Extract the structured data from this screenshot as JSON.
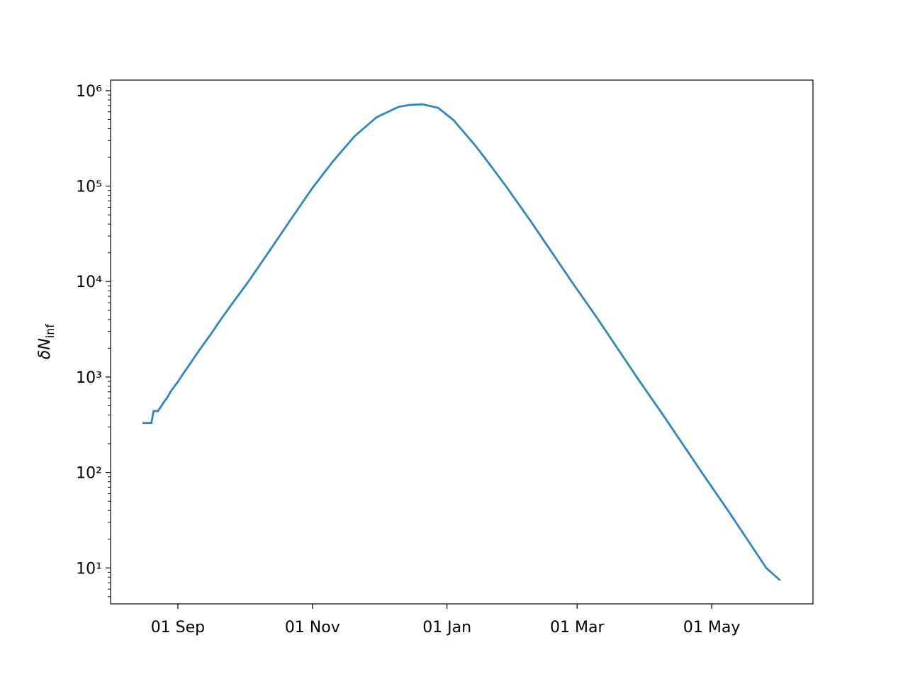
{
  "chart_data": {
    "type": "line",
    "ylabel": "δN",
    "ylabel_subscript": "inf",
    "log_y": true,
    "xlim": [
      -30.5,
      287.9
    ],
    "xticks": [
      {
        "value": 0,
        "label": "01 Sep"
      },
      {
        "value": 61,
        "label": "01 Nov"
      },
      {
        "value": 122,
        "label": "01 Jan"
      },
      {
        "value": 181,
        "label": "01 Mar"
      },
      {
        "value": 242,
        "label": "01 May"
      }
    ],
    "ylim": [
      4.2,
      1290000
    ],
    "yticks": [
      {
        "value": 10,
        "label": "10¹"
      },
      {
        "value": 100,
        "label": "10²"
      },
      {
        "value": 1000,
        "label": "10³"
      },
      {
        "value": 10000,
        "label": "10⁴"
      },
      {
        "value": 100000,
        "label": "10⁵"
      },
      {
        "value": 1000000,
        "label": "10⁶"
      }
    ],
    "x": [
      -16,
      -12,
      -11,
      -9,
      -6,
      -5,
      -3,
      0,
      2,
      5,
      10,
      15,
      20,
      25,
      32,
      40,
      50,
      61,
      70,
      80,
      90,
      100,
      105,
      111,
      118,
      125,
      135,
      140,
      148.7,
      160,
      178.5,
      190,
      208,
      220,
      237.5,
      250,
      266.7,
      273
    ],
    "series": [
      {
        "color": "#2e86c1",
        "values": [
          330,
          330,
          440,
          440,
          560,
          600,
          720,
          890,
          1050,
          1320,
          1950,
          2820,
          4170,
          6030,
          10000,
          18600,
          40700,
          95500,
          178000,
          331000,
          525000,
          676000,
          708000,
          720000,
          660000,
          490000,
          263000,
          186000,
          100000,
          42700,
          10000,
          4170,
          1000,
          398,
          100,
          38,
          10,
          7.4
        ]
      }
    ]
  }
}
